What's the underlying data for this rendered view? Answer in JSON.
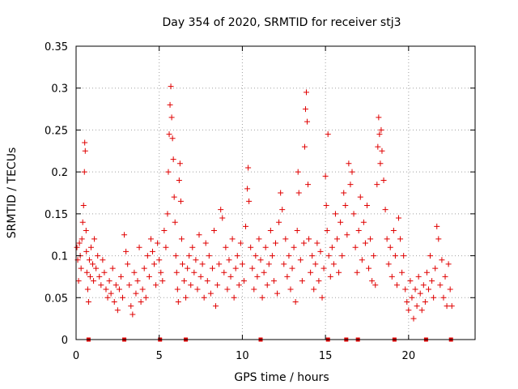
{
  "chart_data": {
    "type": "scatter",
    "title": "Day 354 of 2020, SRMTID for receiver stj3",
    "xlabel": "GPS time / hours",
    "ylabel": "SRMTID / TECUs",
    "xlim": [
      0,
      24
    ],
    "ylim": [
      0,
      0.35
    ],
    "xticks": [
      0,
      5,
      10,
      15,
      20
    ],
    "xtick_labels": [
      "0",
      "5",
      "10",
      "15",
      "20"
    ],
    "yticks": [
      0,
      0.05,
      0.1,
      0.15,
      0.2,
      0.25,
      0.3,
      0.35
    ],
    "ytick_labels": [
      "0",
      "0.05",
      "0.1",
      "0.15",
      "0.2",
      "0.25",
      "0.3",
      "0.35"
    ],
    "grid": true,
    "marker": "plus",
    "color": "#e00000",
    "series": [
      {
        "name": "SRMTID",
        "points": [
          [
            0.05,
            0.11
          ],
          [
            0.1,
            0.095
          ],
          [
            0.15,
            0.07
          ],
          [
            0.2,
            0.115
          ],
          [
            0.25,
            0.1
          ],
          [
            0.3,
            0.085
          ],
          [
            0.35,
            0.12
          ],
          [
            0.4,
            0.14
          ],
          [
            0.45,
            0.16
          ],
          [
            0.5,
            0.2
          ],
          [
            0.52,
            0.235
          ],
          [
            0.55,
            0.225
          ],
          [
            0.6,
            0.13
          ],
          [
            0.62,
            0.105
          ],
          [
            0.65,
            0.08
          ],
          [
            0.7,
            0.06
          ],
          [
            0.75,
            0.045
          ],
          [
            0.8,
            0.095
          ],
          [
            0.85,
            0.075
          ],
          [
            0.9,
            0.11
          ],
          [
            1.0,
            0.09
          ],
          [
            1.05,
            0.07
          ],
          [
            1.1,
            0.12
          ],
          [
            1.2,
            0.085
          ],
          [
            1.3,
            0.1
          ],
          [
            1.4,
            0.075
          ],
          [
            1.5,
            0.065
          ],
          [
            1.6,
            0.095
          ],
          [
            1.7,
            0.08
          ],
          [
            1.8,
            0.06
          ],
          [
            1.9,
            0.05
          ],
          [
            2.0,
            0.07
          ],
          [
            2.1,
            0.055
          ],
          [
            2.2,
            0.085
          ],
          [
            2.3,
            0.045
          ],
          [
            2.4,
            0.065
          ],
          [
            2.5,
            0.035
          ],
          [
            2.6,
            0.06
          ],
          [
            2.7,
            0.075
          ],
          [
            2.8,
            0.05
          ],
          [
            2.9,
            0.125
          ],
          [
            3.0,
            0.105
          ],
          [
            3.1,
            0.09
          ],
          [
            3.2,
            0.065
          ],
          [
            3.3,
            0.04
          ],
          [
            3.4,
            0.03
          ],
          [
            3.5,
            0.08
          ],
          [
            3.6,
            0.055
          ],
          [
            3.7,
            0.07
          ],
          [
            3.8,
            0.11
          ],
          [
            3.9,
            0.045
          ],
          [
            4.0,
            0.06
          ],
          [
            4.1,
            0.085
          ],
          [
            4.2,
            0.05
          ],
          [
            4.3,
            0.1
          ],
          [
            4.4,
            0.075
          ],
          [
            4.5,
            0.12
          ],
          [
            4.6,
            0.105
          ],
          [
            4.7,
            0.09
          ],
          [
            4.8,
            0.065
          ],
          [
            4.9,
            0.115
          ],
          [
            5.0,
            0.095
          ],
          [
            5.1,
            0.08
          ],
          [
            5.2,
            0.07
          ],
          [
            5.3,
            0.13
          ],
          [
            5.4,
            0.11
          ],
          [
            5.5,
            0.15
          ],
          [
            5.55,
            0.2
          ],
          [
            5.6,
            0.245
          ],
          [
            5.65,
            0.28
          ],
          [
            5.7,
            0.302
          ],
          [
            5.75,
            0.265
          ],
          [
            5.8,
            0.24
          ],
          [
            5.85,
            0.215
          ],
          [
            5.9,
            0.17
          ],
          [
            5.95,
            0.14
          ],
          [
            6.0,
            0.1
          ],
          [
            6.05,
            0.08
          ],
          [
            6.1,
            0.06
          ],
          [
            6.15,
            0.045
          ],
          [
            6.2,
            0.19
          ],
          [
            6.25,
            0.21
          ],
          [
            6.3,
            0.165
          ],
          [
            6.35,
            0.12
          ],
          [
            6.4,
            0.09
          ],
          [
            6.5,
            0.07
          ],
          [
            6.6,
            0.05
          ],
          [
            6.7,
            0.085
          ],
          [
            6.8,
            0.1
          ],
          [
            6.9,
            0.065
          ],
          [
            7.0,
            0.11
          ],
          [
            7.1,
            0.08
          ],
          [
            7.2,
            0.095
          ],
          [
            7.3,
            0.06
          ],
          [
            7.4,
            0.125
          ],
          [
            7.5,
            0.075
          ],
          [
            7.6,
            0.09
          ],
          [
            7.7,
            0.05
          ],
          [
            7.8,
            0.115
          ],
          [
            7.9,
            0.07
          ],
          [
            8.0,
            0.1
          ],
          [
            8.1,
            0.055
          ],
          [
            8.2,
            0.085
          ],
          [
            8.3,
            0.13
          ],
          [
            8.4,
            0.04
          ],
          [
            8.5,
            0.065
          ],
          [
            8.6,
            0.09
          ],
          [
            8.7,
            0.155
          ],
          [
            8.8,
            0.145
          ],
          [
            8.9,
            0.08
          ],
          [
            9.0,
            0.11
          ],
          [
            9.1,
            0.06
          ],
          [
            9.2,
            0.095
          ],
          [
            9.3,
            0.075
          ],
          [
            9.4,
            0.12
          ],
          [
            9.5,
            0.05
          ],
          [
            9.6,
            0.085
          ],
          [
            9.7,
            0.1
          ],
          [
            9.8,
            0.065
          ],
          [
            9.9,
            0.115
          ],
          [
            10.0,
            0.09
          ],
          [
            10.1,
            0.07
          ],
          [
            10.2,
            0.135
          ],
          [
            10.3,
            0.18
          ],
          [
            10.35,
            0.205
          ],
          [
            10.4,
            0.165
          ],
          [
            10.5,
            0.11
          ],
          [
            10.6,
            0.085
          ],
          [
            10.7,
            0.06
          ],
          [
            10.8,
            0.1
          ],
          [
            10.9,
            0.075
          ],
          [
            11.0,
            0.12
          ],
          [
            11.1,
            0.095
          ],
          [
            11.2,
            0.05
          ],
          [
            11.3,
            0.08
          ],
          [
            11.4,
            0.11
          ],
          [
            11.5,
            0.065
          ],
          [
            11.6,
            0.09
          ],
          [
            11.7,
            0.13
          ],
          [
            11.8,
            0.1
          ],
          [
            11.9,
            0.07
          ],
          [
            12.0,
            0.115
          ],
          [
            12.1,
            0.055
          ],
          [
            12.2,
            0.14
          ],
          [
            12.3,
            0.175
          ],
          [
            12.4,
            0.155
          ],
          [
            12.5,
            0.09
          ],
          [
            12.6,
            0.12
          ],
          [
            12.7,
            0.075
          ],
          [
            12.8,
            0.1
          ],
          [
            12.9,
            0.06
          ],
          [
            13.0,
            0.085
          ],
          [
            13.1,
            0.11
          ],
          [
            13.2,
            0.045
          ],
          [
            13.3,
            0.13
          ],
          [
            13.35,
            0.2
          ],
          [
            13.4,
            0.175
          ],
          [
            13.5,
            0.095
          ],
          [
            13.6,
            0.07
          ],
          [
            13.7,
            0.115
          ],
          [
            13.75,
            0.23
          ],
          [
            13.8,
            0.275
          ],
          [
            13.85,
            0.295
          ],
          [
            13.9,
            0.26
          ],
          [
            13.95,
            0.185
          ],
          [
            14.0,
            0.12
          ],
          [
            14.1,
            0.08
          ],
          [
            14.2,
            0.1
          ],
          [
            14.3,
            0.06
          ],
          [
            14.4,
            0.09
          ],
          [
            14.5,
            0.115
          ],
          [
            14.6,
            0.07
          ],
          [
            14.7,
            0.105
          ],
          [
            14.8,
            0.05
          ],
          [
            14.9,
            0.085
          ],
          [
            15.0,
            0.195
          ],
          [
            15.05,
            0.16
          ],
          [
            15.1,
            0.13
          ],
          [
            15.15,
            0.245
          ],
          [
            15.2,
            0.1
          ],
          [
            15.3,
            0.075
          ],
          [
            15.4,
            0.11
          ],
          [
            15.5,
            0.09
          ],
          [
            15.6,
            0.15
          ],
          [
            15.7,
            0.12
          ],
          [
            15.8,
            0.08
          ],
          [
            15.9,
            0.14
          ],
          [
            16.0,
            0.1
          ],
          [
            16.1,
            0.175
          ],
          [
            16.2,
            0.16
          ],
          [
            16.3,
            0.125
          ],
          [
            16.4,
            0.21
          ],
          [
            16.5,
            0.185
          ],
          [
            16.6,
            0.2
          ],
          [
            16.7,
            0.15
          ],
          [
            16.8,
            0.11
          ],
          [
            16.9,
            0.08
          ],
          [
            17.0,
            0.13
          ],
          [
            17.1,
            0.17
          ],
          [
            17.2,
            0.095
          ],
          [
            17.3,
            0.14
          ],
          [
            17.4,
            0.115
          ],
          [
            17.5,
            0.16
          ],
          [
            17.6,
            0.085
          ],
          [
            17.7,
            0.12
          ],
          [
            17.8,
            0.07
          ],
          [
            17.9,
            0.1
          ],
          [
            18.0,
            0.065
          ],
          [
            18.1,
            0.185
          ],
          [
            18.15,
            0.23
          ],
          [
            18.2,
            0.265
          ],
          [
            18.25,
            0.245
          ],
          [
            18.3,
            0.21
          ],
          [
            18.35,
            0.25
          ],
          [
            18.4,
            0.225
          ],
          [
            18.5,
            0.19
          ],
          [
            18.6,
            0.155
          ],
          [
            18.7,
            0.12
          ],
          [
            18.8,
            0.09
          ],
          [
            18.9,
            0.11
          ],
          [
            19.0,
            0.075
          ],
          [
            19.1,
            0.13
          ],
          [
            19.2,
            0.1
          ],
          [
            19.3,
            0.065
          ],
          [
            19.4,
            0.145
          ],
          [
            19.5,
            0.12
          ],
          [
            19.6,
            0.08
          ],
          [
            19.7,
            0.1
          ],
          [
            19.8,
            0.06
          ],
          [
            19.9,
            0.045
          ],
          [
            20.0,
            0.035
          ],
          [
            20.1,
            0.07
          ],
          [
            20.2,
            0.05
          ],
          [
            20.3,
            0.025
          ],
          [
            20.4,
            0.06
          ],
          [
            20.5,
            0.04
          ],
          [
            20.6,
            0.075
          ],
          [
            20.7,
            0.055
          ],
          [
            20.8,
            0.035
          ],
          [
            20.9,
            0.065
          ],
          [
            21.0,
            0.045
          ],
          [
            21.1,
            0.08
          ],
          [
            21.2,
            0.06
          ],
          [
            21.3,
            0.1
          ],
          [
            21.4,
            0.07
          ],
          [
            21.5,
            0.05
          ],
          [
            21.6,
            0.085
          ],
          [
            21.7,
            0.135
          ],
          [
            21.8,
            0.12
          ],
          [
            21.9,
            0.065
          ],
          [
            22.0,
            0.095
          ],
          [
            22.1,
            0.05
          ],
          [
            22.2,
            0.075
          ],
          [
            22.3,
            0.04
          ],
          [
            22.4,
            0.09
          ],
          [
            22.5,
            0.06
          ],
          [
            22.6,
            0.04
          ]
        ]
      }
    ],
    "gap_markers_x": [
      0.75,
      2.9,
      5.05,
      6.6,
      11.1,
      15.15,
      16.25,
      16.95,
      19.15,
      21.05,
      22.55
    ]
  }
}
